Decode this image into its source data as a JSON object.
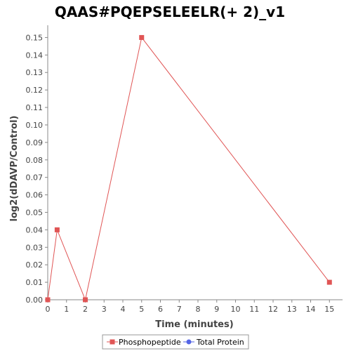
{
  "chart_data": {
    "type": "line",
    "title": "QAAS#PQEPSELEELR(+ 2)_v1",
    "xlabel": "Time (minutes)",
    "ylabel": "log2(dDAVP/Control)",
    "xlim": [
      0,
      15.7
    ],
    "ylim": [
      0,
      0.157
    ],
    "xticks": [
      0,
      1,
      2,
      3,
      4,
      5,
      6,
      7,
      8,
      9,
      10,
      11,
      12,
      13,
      14,
      15
    ],
    "yticks": [
      0.0,
      0.01,
      0.02,
      0.03,
      0.04,
      0.05,
      0.06,
      0.07,
      0.08,
      0.09,
      0.1,
      0.11,
      0.12,
      0.13,
      0.14,
      0.15
    ],
    "ytick_labels": [
      "0.00",
      "0.01",
      "0.02",
      "0.03",
      "0.04",
      "0.05",
      "0.06",
      "0.07",
      "0.08",
      "0.09",
      "0.10",
      "0.11",
      "0.12",
      "0.13",
      "0.14",
      "0.15"
    ],
    "grid": false,
    "legend_position": "bottom",
    "series": [
      {
        "name": "Phosphopeptide",
        "color": "#e05555",
        "marker": "square",
        "x": [
          0,
          0.5,
          2,
          5,
          15
        ],
        "y": [
          0.0,
          0.04,
          0.0,
          0.15,
          0.01
        ]
      },
      {
        "name": "Total Protein",
        "color": "#5566e6",
        "marker": "circle",
        "x": [],
        "y": []
      }
    ]
  }
}
